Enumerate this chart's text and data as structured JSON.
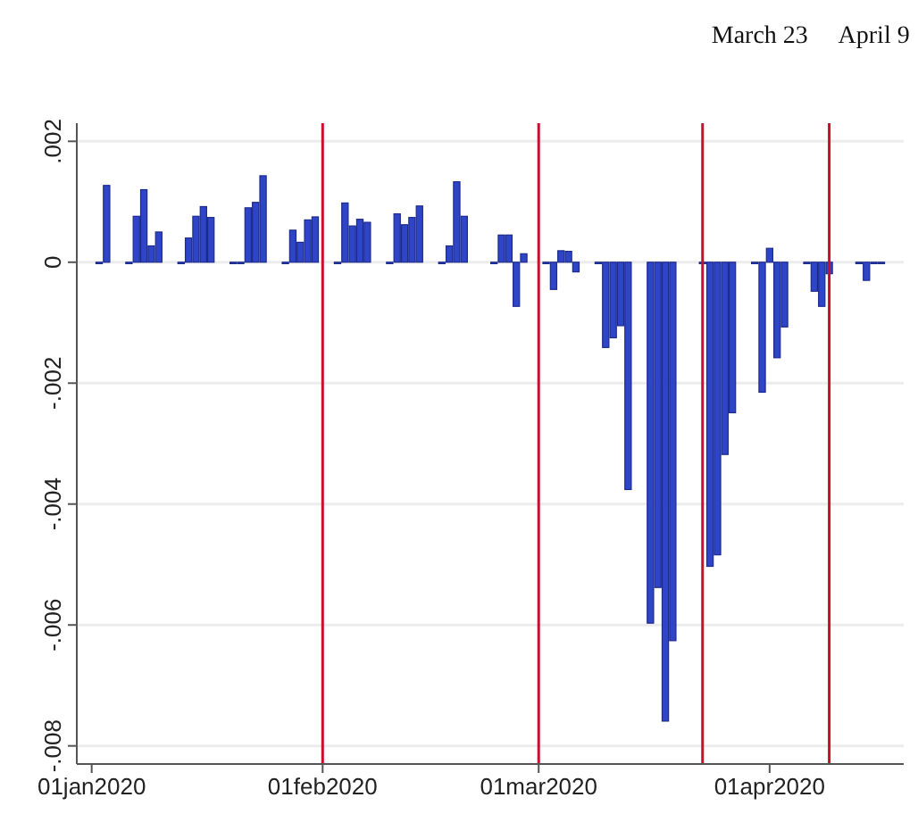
{
  "chart_data": {
    "type": "bar",
    "x": [
      "2020-01-02",
      "2020-01-03",
      "2020-01-06",
      "2020-01-07",
      "2020-01-08",
      "2020-01-09",
      "2020-01-10",
      "2020-01-13",
      "2020-01-14",
      "2020-01-15",
      "2020-01-16",
      "2020-01-17",
      "2020-01-20",
      "2020-01-21",
      "2020-01-22",
      "2020-01-23",
      "2020-01-24",
      "2020-01-27",
      "2020-01-28",
      "2020-01-29",
      "2020-01-30",
      "2020-01-31",
      "2020-02-03",
      "2020-02-04",
      "2020-02-05",
      "2020-02-06",
      "2020-02-07",
      "2020-02-10",
      "2020-02-11",
      "2020-02-12",
      "2020-02-13",
      "2020-02-14",
      "2020-02-17",
      "2020-02-18",
      "2020-02-19",
      "2020-02-20",
      "2020-02-24",
      "2020-02-25",
      "2020-02-26",
      "2020-02-27",
      "2020-02-28",
      "2020-03-02",
      "2020-03-03",
      "2020-03-04",
      "2020-03-05",
      "2020-03-06",
      "2020-03-09",
      "2020-03-10",
      "2020-03-11",
      "2020-03-12",
      "2020-03-13",
      "2020-03-16",
      "2020-03-17",
      "2020-03-18",
      "2020-03-19",
      "2020-03-23",
      "2020-03-24",
      "2020-03-25",
      "2020-03-26",
      "2020-03-27",
      "2020-03-30",
      "2020-03-31",
      "2020-04-01",
      "2020-04-02",
      "2020-04-03",
      "2020-04-06",
      "2020-04-07",
      "2020-04-08",
      "2020-04-09",
      "2020-04-13",
      "2020-04-14",
      "2020-04-15",
      "2020-04-16"
    ],
    "values": [
      0,
      0.00127,
      0,
      0.00076,
      0.0012,
      0.00027,
      0.0005,
      0,
      0.0004,
      0.00076,
      0.00092,
      0.00074,
      0,
      0,
      0.0009,
      0.00099,
      0.00143,
      0,
      0.00053,
      0.00033,
      0.0007,
      0.00075,
      0,
      0.00098,
      0.0006,
      0.00071,
      0.00066,
      0,
      0.0008,
      0.00062,
      0.00074,
      0.00093,
      0,
      0.00027,
      0.00133,
      0.00076,
      0,
      0.00045,
      0.00045,
      -0.00073,
      0.00014,
      0,
      -0.00045,
      0.00019,
      0.00018,
      -0.00016,
      0,
      -0.00141,
      -0.00125,
      -0.00105,
      -0.00376,
      -0.00597,
      -0.00538,
      -0.00759,
      -0.00626,
      0,
      -0.00503,
      -0.00484,
      -0.00318,
      -0.00249,
      0,
      -0.00215,
      0.00023,
      -0.00158,
      -0.00107,
      0,
      -0.00048,
      -0.00073,
      -0.00019,
      0,
      -0.0003,
      0,
      0
    ],
    "color": "#2f45c8",
    "xlim": [
      "2019-12-30",
      "2020-04-19"
    ],
    "xticks": [
      {
        "value": "2020-01-01",
        "label": "01jan2020"
      },
      {
        "value": "2020-02-01",
        "label": "01feb2020"
      },
      {
        "value": "2020-03-01",
        "label": "01mar2020"
      },
      {
        "value": "2020-04-01",
        "label": "01apr2020"
      }
    ],
    "ylim": [
      -0.0083,
      0.0023
    ],
    "yticks": [
      {
        "value": 0.002,
        "label": ".002"
      },
      0,
      {
        "value": -0.002,
        "label": "-.002"
      },
      {
        "value": -0.004,
        "label": "-.004"
      },
      {
        "value": -0.006,
        "label": "-.006"
      },
      {
        "value": -0.008,
        "label": "-.008"
      }
    ],
    "grid": "y",
    "ref_lines": [
      {
        "axis": "x",
        "value": "2020-02-01",
        "color": "#c8102e"
      },
      {
        "axis": "x",
        "value": "2020-03-01",
        "color": "#c8102e"
      },
      {
        "axis": "x",
        "value": "2020-03-23",
        "label": "March 23",
        "color": "#c8102e"
      },
      {
        "axis": "x",
        "value": "2020-04-09",
        "label": "April 9",
        "color": "#c8102e"
      }
    ]
  }
}
